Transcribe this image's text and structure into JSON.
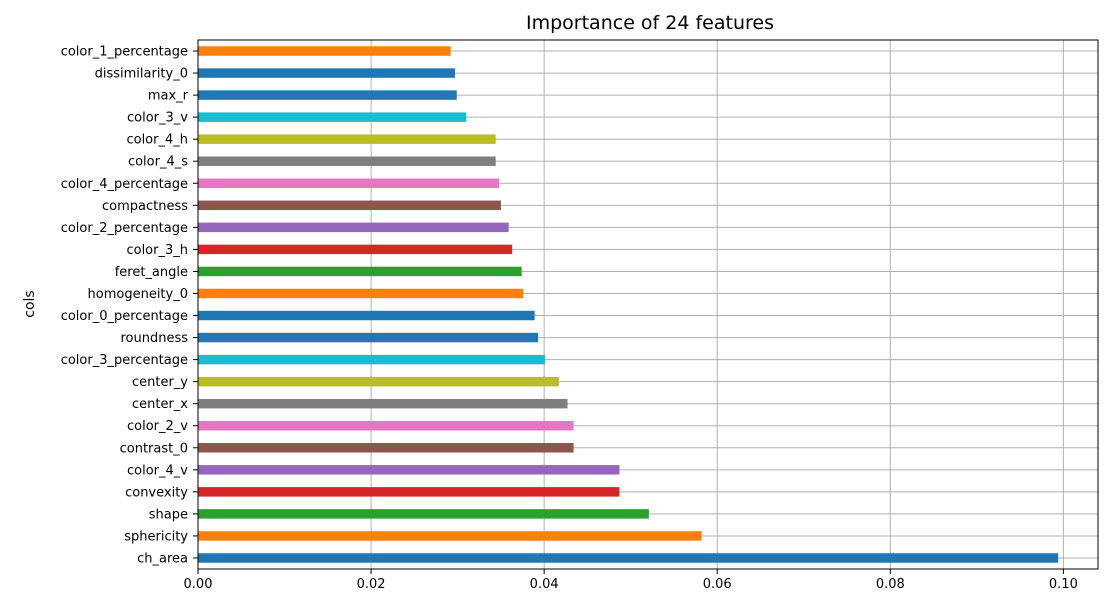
{
  "chart_data": {
    "type": "bar",
    "orientation": "horizontal",
    "title": "Importance of 24 features",
    "xlabel": "",
    "ylabel": "cols",
    "xlim": [
      0,
      0.104
    ],
    "xticks": [
      0.0,
      0.02,
      0.04,
      0.06,
      0.08,
      0.1
    ],
    "xtick_labels": [
      "0.00",
      "0.02",
      "0.04",
      "0.06",
      "0.08",
      "0.10"
    ],
    "grid": true,
    "legend": "none",
    "categories": [
      "ch_area",
      "sphericity",
      "shape",
      "convexity",
      "color_4_v",
      "contrast_0",
      "color_2_v",
      "center_x",
      "center_y",
      "color_3_percentage",
      "roundness",
      "color_0_percentage",
      "homogeneity_0",
      "feret_angle",
      "color_3_h",
      "color_2_percentage",
      "compactness",
      "color_4_percentage",
      "color_4_s",
      "color_4_h",
      "color_3_v",
      "max_r",
      "dissimilarity_0",
      "color_1_percentage"
    ],
    "values": [
      0.0994,
      0.0582,
      0.0521,
      0.0487,
      0.0487,
      0.0434,
      0.0434,
      0.0427,
      0.0417,
      0.0401,
      0.0393,
      0.0389,
      0.0376,
      0.0374,
      0.0363,
      0.0359,
      0.035,
      0.0348,
      0.0344,
      0.0344,
      0.031,
      0.0299,
      0.0297,
      0.0292
    ],
    "colors": [
      "#1f77b4",
      "#ff7f0e",
      "#2ca02c",
      "#d62728",
      "#9467bd",
      "#8c564b",
      "#e377c2",
      "#7f7f7f",
      "#bcbd22",
      "#17becf",
      "#1f77b4",
      "#1f77b4",
      "#ff7f0e",
      "#2ca02c",
      "#d62728",
      "#9467bd",
      "#8c564b",
      "#e377c2",
      "#7f7f7f",
      "#bcbd22",
      "#17becf",
      "#1f77b4",
      "#1f77b4",
      "#ff7f0e"
    ]
  }
}
